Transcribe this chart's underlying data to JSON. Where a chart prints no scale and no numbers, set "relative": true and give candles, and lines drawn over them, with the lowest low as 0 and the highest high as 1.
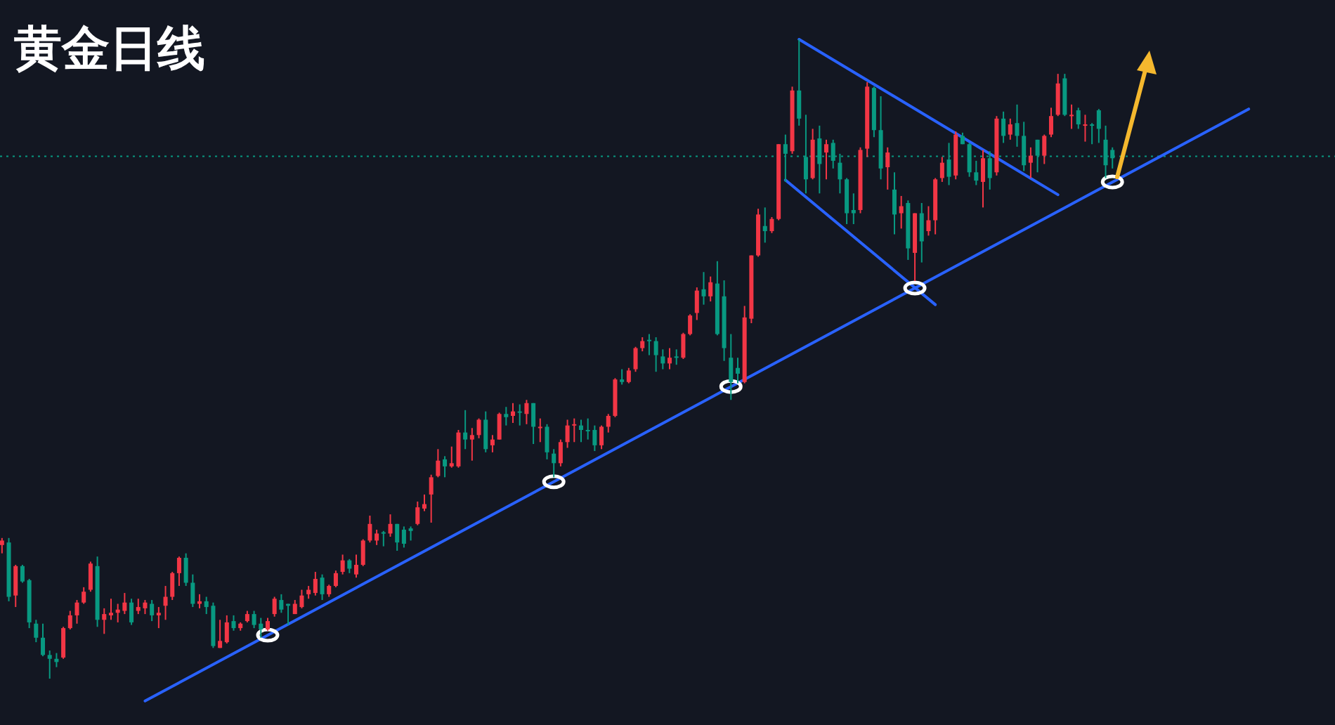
{
  "chart_data": {
    "type": "candlestick",
    "title": "黄金日线",
    "relative": true,
    "categories": [
      null,
      null,
      null,
      null,
      null,
      null,
      null,
      null,
      null,
      null,
      null,
      null,
      null,
      null,
      null,
      null,
      null,
      null,
      null,
      null,
      null,
      null,
      null,
      null,
      null,
      null,
      null,
      null,
      null,
      null,
      null,
      null,
      null,
      null,
      null,
      null,
      null,
      null,
      null,
      null,
      null,
      null,
      null,
      null,
      null,
      null,
      null,
      null,
      null,
      null,
      null,
      null,
      null,
      null,
      null,
      null,
      null,
      null,
      null,
      null,
      null,
      null,
      null,
      null,
      null,
      null,
      null,
      null,
      null,
      null,
      null,
      null,
      null,
      null,
      null,
      null,
      null,
      null,
      null,
      null,
      null,
      null,
      null,
      null,
      null,
      null,
      null,
      null,
      null,
      null,
      null,
      null,
      null,
      null,
      null,
      null,
      null,
      null,
      null,
      null,
      null,
      null,
      null,
      null,
      null,
      null,
      null,
      null,
      null,
      null,
      null,
      null,
      null,
      null,
      null,
      null,
      null,
      null,
      null,
      null,
      null,
      null,
      null,
      null,
      null,
      null,
      null,
      null,
      null,
      null,
      null,
      null,
      null,
      null,
      null,
      null,
      null,
      null,
      null,
      null,
      null,
      null,
      null,
      null,
      null,
      null,
      null,
      null,
      null,
      null,
      null,
      null,
      null,
      null,
      null,
      null,
      null,
      null,
      null,
      null,
      null,
      null,
      null,
      null,
      null,
      null,
      null,
      null,
      null,
      null,
      null,
      null,
      null,
      null,
      null,
      null,
      null,
      null,
      null,
      null,
      null,
      null,
      null,
      null
    ],
    "ohlc": [
      [
        0.209,
        0.22,
        0.196,
        0.216
      ],
      [
        0.213,
        0.22,
        0.121,
        0.128
      ],
      [
        0.13,
        0.178,
        0.112,
        0.176
      ],
      [
        0.176,
        0.178,
        0.15,
        0.152
      ],
      [
        0.154,
        0.156,
        0.079,
        0.088
      ],
      [
        0.086,
        0.092,
        0.057,
        0.064
      ],
      [
        0.064,
        0.086,
        0.035,
        0.037
      ],
      [
        0.037,
        0.044,
        0,
        0.031
      ],
      [
        0.031,
        0.04,
        0.018,
        0.026
      ],
      [
        0.033,
        0.081,
        0.031,
        0.079
      ],
      [
        0.079,
        0.106,
        0.077,
        0.099
      ],
      [
        0.099,
        0.123,
        0.086,
        0.119
      ],
      [
        0.119,
        0.143,
        0.117,
        0.136
      ],
      [
        0.139,
        0.183,
        0.136,
        0.18
      ],
      [
        0.176,
        0.191,
        0.081,
        0.092
      ],
      [
        0.092,
        0.11,
        0.07,
        0.101
      ],
      [
        0.099,
        0.125,
        0.092,
        0.103
      ],
      [
        0.103,
        0.117,
        0.088,
        0.108
      ],
      [
        0.106,
        0.134,
        0.101,
        0.119
      ],
      [
        0.119,
        0.125,
        0.084,
        0.088
      ],
      [
        0.106,
        0.125,
        0.101,
        0.112
      ],
      [
        0.11,
        0.123,
        0.101,
        0.119
      ],
      [
        0.117,
        0.123,
        0.09,
        0.099
      ],
      [
        0.099,
        0.112,
        0.079,
        0.103
      ],
      [
        0.114,
        0.145,
        0.092,
        0.128
      ],
      [
        0.128,
        0.167,
        0.123,
        0.165
      ],
      [
        0.165,
        0.191,
        0.145,
        0.189
      ],
      [
        0.189,
        0.196,
        0.145,
        0.15
      ],
      [
        0.15,
        0.163,
        0.112,
        0.117
      ],
      [
        0.117,
        0.132,
        0.11,
        0.121
      ],
      [
        0.121,
        0.128,
        0.101,
        0.112
      ],
      [
        0.114,
        0.119,
        0.048,
        0.051
      ],
      [
        0.048,
        0.092,
        0.048,
        0.059
      ],
      [
        0.057,
        0.099,
        0.055,
        0.088
      ],
      [
        0.09,
        0.099,
        0.075,
        0.079
      ],
      [
        0.079,
        0.088,
        0.075,
        0.086
      ],
      [
        0.09,
        0.106,
        0.088,
        0.101
      ],
      [
        0.101,
        0.106,
        0.079,
        0.084
      ],
      [
        0.086,
        0.095,
        0.064,
        0.077
      ],
      [
        0.077,
        0.095,
        0.075,
        0.09
      ],
      [
        0.101,
        0.128,
        0.097,
        0.125
      ],
      [
        0.123,
        0.132,
        0.103,
        0.108
      ],
      [
        0.117,
        0.117,
        0.084,
        0.114
      ],
      [
        0.101,
        0.123,
        0.101,
        0.117
      ],
      [
        0.112,
        0.139,
        0.11,
        0.13
      ],
      [
        0.132,
        0.145,
        0.125,
        0.139
      ],
      [
        0.134,
        0.167,
        0.13,
        0.156
      ],
      [
        0.158,
        0.163,
        0.123,
        0.132
      ],
      [
        0.132,
        0.147,
        0.128,
        0.145
      ],
      [
        0.145,
        0.169,
        0.143,
        0.165
      ],
      [
        0.167,
        0.194,
        0.163,
        0.185
      ],
      [
        0.185,
        0.187,
        0.165,
        0.172
      ],
      [
        0.163,
        0.194,
        0.158,
        0.178
      ],
      [
        0.178,
        0.218,
        0.176,
        0.216
      ],
      [
        0.216,
        0.255,
        0.213,
        0.242
      ],
      [
        0.216,
        0.233,
        0.209,
        0.227
      ],
      [
        0.229,
        0.231,
        0.207,
        0.227
      ],
      [
        0.227,
        0.257,
        0.222,
        0.242
      ],
      [
        0.242,
        0.242,
        0.2,
        0.213
      ],
      [
        0.233,
        0.238,
        0.205,
        0.211
      ],
      [
        0.235,
        0.238,
        0.216,
        0.231
      ],
      [
        0.242,
        0.277,
        0.24,
        0.268
      ],
      [
        0.266,
        0.288,
        0.262,
        0.273
      ],
      [
        0.288,
        0.319,
        0.244,
        0.315
      ],
      [
        0.317,
        0.359,
        0.315,
        0.341
      ],
      [
        0.343,
        0.348,
        0.315,
        0.332
      ],
      [
        0.332,
        0.363,
        0.33,
        0.337
      ],
      [
        0.332,
        0.389,
        0.33,
        0.385
      ],
      [
        0.385,
        0.42,
        0.359,
        0.374
      ],
      [
        0.374,
        0.392,
        0.341,
        0.381
      ],
      [
        0.381,
        0.407,
        0.376,
        0.405
      ],
      [
        0.405,
        0.418,
        0.354,
        0.359
      ],
      [
        0.365,
        0.381,
        0.354,
        0.374
      ],
      [
        0.374,
        0.416,
        0.374,
        0.414
      ],
      [
        0.414,
        0.425,
        0.396,
        0.409
      ],
      [
        0.411,
        0.431,
        0.4,
        0.418
      ],
      [
        0.418,
        0.429,
        0.396,
        0.416
      ],
      [
        0.414,
        0.436,
        0.398,
        0.431
      ],
      [
        0.431,
        0.431,
        0.367,
        0.394
      ],
      [
        0.392,
        0.407,
        0.37,
        0.394
      ],
      [
        0.394,
        0.398,
        0.343,
        0.354
      ],
      [
        0.352,
        0.359,
        0.315,
        0.337
      ],
      [
        0.337,
        0.374,
        0.332,
        0.37
      ],
      [
        0.37,
        0.405,
        0.361,
        0.396
      ],
      [
        0.396,
        0.407,
        0.37,
        0.398
      ],
      [
        0.396,
        0.405,
        0.37,
        0.389
      ],
      [
        0.389,
        0.407,
        0.374,
        0.387
      ],
      [
        0.389,
        0.396,
        0.356,
        0.365
      ],
      [
        0.365,
        0.396,
        0.359,
        0.394
      ],
      [
        0.394,
        0.414,
        0.385,
        0.411
      ],
      [
        0.411,
        0.47,
        0.409,
        0.468
      ],
      [
        0.468,
        0.484,
        0.46,
        0.464
      ],
      [
        0.464,
        0.486,
        0.462,
        0.482
      ],
      [
        0.484,
        0.519,
        0.48,
        0.517
      ],
      [
        0.517,
        0.534,
        0.512,
        0.528
      ],
      [
        0.53,
        0.539,
        0.506,
        0.528
      ],
      [
        0.528,
        0.534,
        0.48,
        0.506
      ],
      [
        0.504,
        0.515,
        0.484,
        0.493
      ],
      [
        0.493,
        0.517,
        0.484,
        0.502
      ],
      [
        0.504,
        0.515,
        0.491,
        0.502
      ],
      [
        0.502,
        0.541,
        0.5,
        0.539
      ],
      [
        0.539,
        0.57,
        0.537,
        0.568
      ],
      [
        0.572,
        0.612,
        0.561,
        0.607
      ],
      [
        0.609,
        0.636,
        0.585,
        0.598
      ],
      [
        0.598,
        0.629,
        0.59,
        0.62
      ],
      [
        0.618,
        0.653,
        0.537,
        0.539
      ],
      [
        0.598,
        0.623,
        0.497,
        0.517
      ],
      [
        0.502,
        0.539,
        0.436,
        0.464
      ],
      [
        0.486,
        0.502,
        0.462,
        0.477
      ],
      [
        0.464,
        0.583,
        0.462,
        0.565
      ],
      [
        0.563,
        0.662,
        0.556,
        0.662
      ],
      [
        0.662,
        0.735,
        0.66,
        0.726
      ],
      [
        0.708,
        0.737,
        0.682,
        0.7
      ],
      [
        0.7,
        0.722,
        0.697,
        0.719
      ],
      [
        0.719,
        0.836,
        0.717,
        0.836
      ],
      [
        0.836,
        0.851,
        0.777,
        0.821
      ],
      [
        0.825,
        0.926,
        0.821,
        0.92
      ],
      [
        0.92,
        1,
        0.865,
        0.876
      ],
      [
        0.816,
        0.882,
        0.759,
        0.781
      ],
      [
        0.783,
        0.86,
        0.781,
        0.843
      ],
      [
        0.845,
        0.865,
        0.759,
        0.805
      ],
      [
        0.823,
        0.843,
        0.781,
        0.836
      ],
      [
        0.838,
        0.843,
        0.798,
        0.81
      ],
      [
        0.807,
        0.821,
        0.759,
        0.781
      ],
      [
        0.781,
        0.783,
        0.711,
        0.728
      ],
      [
        0.733,
        0.759,
        0.711,
        0.728
      ],
      [
        0.733,
        0.831,
        0.728,
        0.827
      ],
      [
        0.829,
        0.933,
        0.816,
        0.926
      ],
      [
        0.924,
        0.926,
        0.847,
        0.858
      ],
      [
        0.858,
        0.911,
        0.781,
        0.798
      ],
      [
        0.8,
        0.831,
        0.765,
        0.823
      ],
      [
        0.765,
        0.792,
        0.695,
        0.726
      ],
      [
        0.728,
        0.755,
        0.704,
        0.739
      ],
      [
        0.744,
        0.748,
        0.655,
        0.673
      ],
      [
        0.666,
        0.728,
        0.622,
        0.728
      ],
      [
        0.728,
        0.744,
        0.651,
        0.684
      ],
      [
        0.7,
        0.739,
        0.693,
        0.717
      ],
      [
        0.717,
        0.783,
        0.695,
        0.781
      ],
      [
        0.783,
        0.816,
        0.777,
        0.807
      ],
      [
        0.812,
        0.838,
        0.772,
        0.785
      ],
      [
        0.787,
        0.856,
        0.781,
        0.851
      ],
      [
        0.849,
        0.854,
        0.836,
        0.836
      ],
      [
        0.836,
        0.838,
        0.785,
        0.792
      ],
      [
        0.792,
        0.81,
        0.772,
        0.779
      ],
      [
        0.777,
        0.827,
        0.737,
        0.814
      ],
      [
        0.814,
        0.825,
        0.765,
        0.783
      ],
      [
        0.792,
        0.88,
        0.787,
        0.876
      ],
      [
        0.876,
        0.887,
        0.838,
        0.849
      ],
      [
        0.851,
        0.876,
        0.843,
        0.867
      ],
      [
        0.869,
        0.898,
        0.832,
        0.849
      ],
      [
        0.849,
        0.871,
        0.794,
        0.803
      ],
      [
        0.807,
        0.831,
        0.783,
        0.818
      ],
      [
        0.843,
        0.843,
        0.792,
        0.818
      ],
      [
        0.818,
        0.851,
        0.805,
        0.849
      ],
      [
        0.851,
        0.893,
        0.847,
        0.88
      ],
      [
        0.882,
        0.946,
        0.88,
        0.931
      ],
      [
        0.939,
        0.946,
        0.88,
        0.882
      ],
      [
        0.88,
        0.898,
        0.86,
        0.882
      ],
      [
        0.889,
        0.893,
        0.86,
        0.867
      ],
      [
        0.865,
        0.882,
        0.84,
        0.867
      ],
      [
        0.867,
        0.869,
        0.836,
        0.865
      ],
      [
        0.889,
        0.891,
        0.838,
        0.86
      ],
      [
        0.843,
        0.865,
        0.783,
        0.803
      ],
      [
        0.827,
        0.831,
        0.798,
        0.814
      ],
      null,
      null,
      null,
      null,
      null,
      null,
      null,
      null,
      null,
      null,
      null,
      null,
      null,
      null,
      null,
      null,
      null,
      null,
      null,
      null
    ],
    "series": [
      {
        "type": "line",
        "color": "#2962ff",
        "values": [
          null,
          null,
          null,
          null,
          null,
          null,
          null,
          null,
          null,
          null,
          null,
          null,
          null,
          null,
          null,
          null,
          null,
          null,
          null,
          null,
          null,
          -0.035,
          null,
          null,
          null,
          null,
          null,
          null,
          null,
          null,
          null,
          null,
          null,
          null,
          null,
          null,
          null,
          null,
          null,
          null,
          null,
          null,
          null,
          null,
          null,
          null,
          null,
          null,
          null,
          null,
          null,
          null,
          null,
          null,
          null,
          null,
          null,
          null,
          null,
          null,
          null,
          null,
          null,
          null,
          null,
          null,
          null,
          null,
          null,
          null,
          null,
          null,
          null,
          null,
          null,
          null,
          null,
          null,
          null,
          null,
          null,
          null,
          null,
          null,
          null,
          null,
          null,
          null,
          null,
          null,
          null,
          null,
          null,
          null,
          null,
          null,
          null,
          null,
          null,
          null,
          null,
          null,
          null,
          null,
          null,
          null,
          null,
          null,
          null,
          null,
          null,
          null,
          null,
          null,
          null,
          null,
          null,
          null,
          null,
          null,
          null,
          null,
          null,
          null,
          null,
          null,
          null,
          null,
          null,
          null,
          null,
          null,
          null,
          null,
          null,
          null,
          null,
          null,
          null,
          null,
          null,
          null,
          null,
          null,
          null,
          null,
          null,
          null,
          null,
          null,
          null,
          null,
          null,
          null,
          null,
          null,
          null,
          null,
          null,
          null,
          null,
          null,
          null,
          null,
          null,
          null,
          null,
          null,
          null,
          null,
          null,
          null,
          null,
          null,
          null,
          null,
          null,
          null,
          null,
          null,
          null,
          null,
          null,
          0.891
        ]
      },
      {
        "type": "line",
        "color": "#2962ff",
        "values": [
          null,
          null,
          null,
          null,
          null,
          null,
          null,
          null,
          null,
          null,
          null,
          null,
          null,
          null,
          null,
          null,
          null,
          null,
          null,
          null,
          null,
          null,
          null,
          null,
          null,
          null,
          null,
          null,
          null,
          null,
          null,
          null,
          null,
          null,
          null,
          null,
          null,
          null,
          null,
          null,
          null,
          null,
          null,
          null,
          null,
          null,
          null,
          null,
          null,
          null,
          null,
          null,
          null,
          null,
          null,
          null,
          null,
          null,
          null,
          null,
          null,
          null,
          null,
          null,
          null,
          null,
          null,
          null,
          null,
          null,
          null,
          null,
          null,
          null,
          null,
          null,
          null,
          null,
          null,
          null,
          null,
          null,
          null,
          null,
          null,
          null,
          null,
          null,
          null,
          null,
          null,
          null,
          null,
          null,
          null,
          null,
          null,
          null,
          null,
          null,
          null,
          null,
          null,
          null,
          null,
          null,
          null,
          null,
          null,
          null,
          null,
          null,
          null,
          null,
          null,
          null,
          null,
          1.0,
          null,
          null,
          null,
          null,
          null,
          null,
          null,
          null,
          null,
          null,
          null,
          null,
          null,
          null,
          null,
          null,
          null,
          null,
          null,
          null,
          null,
          null,
          null,
          null,
          null,
          null,
          null,
          null,
          null,
          null,
          null,
          null,
          null,
          null,
          null,
          null,
          null,
          0.757,
          null,
          null,
          null,
          null,
          null,
          null,
          null,
          null,
          null,
          null,
          null,
          null,
          null,
          null,
          null,
          null,
          null,
          null,
          null,
          null,
          null,
          null,
          null,
          null,
          null,
          null,
          null,
          null
        ]
      },
      {
        "type": "line",
        "color": "#2962ff",
        "values": [
          null,
          null,
          null,
          null,
          null,
          null,
          null,
          null,
          null,
          null,
          null,
          null,
          null,
          null,
          null,
          null,
          null,
          null,
          null,
          null,
          null,
          null,
          null,
          null,
          null,
          null,
          null,
          null,
          null,
          null,
          null,
          null,
          null,
          null,
          null,
          null,
          null,
          null,
          null,
          null,
          null,
          null,
          null,
          null,
          null,
          null,
          null,
          null,
          null,
          null,
          null,
          null,
          null,
          null,
          null,
          null,
          null,
          null,
          null,
          null,
          null,
          null,
          null,
          null,
          null,
          null,
          null,
          null,
          null,
          null,
          null,
          null,
          null,
          null,
          null,
          null,
          null,
          null,
          null,
          null,
          null,
          null,
          null,
          null,
          null,
          null,
          null,
          null,
          null,
          null,
          null,
          null,
          null,
          null,
          null,
          null,
          null,
          null,
          null,
          null,
          null,
          null,
          null,
          null,
          null,
          null,
          null,
          null,
          null,
          null,
          null,
          null,
          null,
          null,
          null,
          0.78,
          null,
          null,
          null,
          null,
          null,
          null,
          null,
          null,
          null,
          null,
          null,
          null,
          null,
          null,
          null,
          null,
          null,
          null,
          null,
          null,
          null,
          0.585,
          null,
          null,
          null,
          null,
          null,
          null,
          null,
          null,
          null,
          null,
          null,
          null,
          null,
          null,
          null,
          null,
          null,
          null,
          null,
          null,
          null,
          null,
          null,
          null,
          null,
          null,
          null,
          null,
          null,
          null,
          null,
          null,
          null,
          null,
          null,
          null,
          null,
          null,
          null,
          null,
          null,
          null,
          null,
          null,
          null,
          null
        ]
      },
      {
        "type": "scatter",
        "color": "#ffffff",
        "marker": "circle",
        "values": [
          null,
          null,
          null,
          null,
          null,
          null,
          null,
          null,
          null,
          null,
          null,
          null,
          null,
          null,
          null,
          null,
          null,
          null,
          null,
          null,
          null,
          null,
          null,
          null,
          null,
          null,
          null,
          null,
          null,
          null,
          null,
          null,
          null,
          null,
          null,
          null,
          null,
          null,
          null,
          0.068,
          null,
          null,
          null,
          null,
          null,
          null,
          null,
          null,
          null,
          null,
          null,
          null,
          null,
          null,
          null,
          null,
          null,
          null,
          null,
          null,
          null,
          null,
          null,
          null,
          null,
          null,
          null,
          null,
          null,
          null,
          null,
          null,
          null,
          null,
          null,
          null,
          null,
          null,
          null,
          null,
          null,
          0.308,
          null,
          null,
          null,
          null,
          null,
          null,
          null,
          null,
          null,
          null,
          null,
          null,
          null,
          null,
          null,
          null,
          null,
          null,
          null,
          null,
          null,
          null,
          null,
          null,
          null,
          0.457,
          null,
          null,
          null,
          null,
          null,
          null,
          null,
          null,
          null,
          null,
          null,
          null,
          null,
          null,
          null,
          null,
          null,
          null,
          null,
          null,
          null,
          null,
          null,
          null,
          null,
          null,
          0.611,
          null,
          null,
          null,
          null,
          null,
          null,
          null,
          null,
          null,
          null,
          null,
          null,
          null,
          null,
          null,
          null,
          null,
          null,
          null,
          null,
          null,
          null,
          null,
          null,
          null,
          null,
          null,
          null,
          0.777,
          null,
          null,
          null,
          null,
          null,
          null,
          null,
          null,
          null,
          null,
          null,
          null,
          null,
          null,
          null,
          null,
          null,
          null,
          null,
          null
        ]
      }
    ],
    "marker": "none",
    "ref_lines": [
      {
        "axis": "y",
        "value": 0.817,
        "color": "#089981",
        "line_style": "dotted"
      }
    ]
  }
}
